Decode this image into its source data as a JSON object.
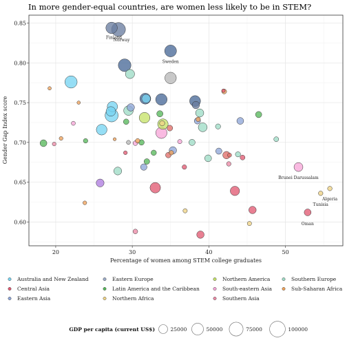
{
  "chart_data": {
    "type": "scatter",
    "title": "In more gender-equal countries, are women less likely to be in STEM?",
    "xlabel": "Percentage of women among STEM college graduates",
    "ylabel": "Gender Gap Index score",
    "xlim": [
      16.5,
      57.5
    ],
    "ylim": [
      0.57,
      0.86
    ],
    "xticks": [
      "20",
      "30",
      "40",
      "50"
    ],
    "yticks": [
      "0.60",
      "0.65",
      "0.70",
      "0.75",
      "0.80",
      "0.85"
    ],
    "grid": true,
    "legend": {
      "region_title": "",
      "regions": [
        {
          "name": "Australia and New Zealand",
          "color": "#79d5f2"
        },
        {
          "name": "Central Asia",
          "color": "#e15b73"
        },
        {
          "name": "Eastern Asia",
          "color": "#8fa7d9"
        },
        {
          "name": "Eastern Europe",
          "color": "#9dadc9"
        },
        {
          "name": "Latin America and the Caribbean",
          "color": "#58b85c"
        },
        {
          "name": "Northern Africa",
          "color": "#f0d487"
        },
        {
          "name": "Northern America",
          "color": "#c6e36a"
        },
        {
          "name": "South-eastern Asia",
          "color": "#f7a6d8"
        },
        {
          "name": "Southern Asia",
          "color": "#ec8aa6"
        },
        {
          "name": "Southern Europe",
          "color": "#9fdcc6"
        },
        {
          "name": "Sub-Saharan Africa",
          "color": "#f0a35c"
        }
      ],
      "size_title": "GDP per capita (current US$)",
      "sizes": [
        {
          "label": "25000",
          "value": 25000
        },
        {
          "label": "50000",
          "value": 50000
        },
        {
          "label": "75000",
          "value": 75000
        },
        {
          "label": "100000",
          "value": 100000
        }
      ],
      "placement": "bottom"
    },
    "extra_colors": {
      "western": "#4a6a98",
      "northern": "#6a7ea0",
      "western_asia": "#e0706a",
      "gray": "#b8b8b8"
    },
    "points": [
      {
        "x": 27.3,
        "y": 0.844,
        "gdp": 47000,
        "color": "#6a7ea0"
      },
      {
        "x": 28.2,
        "y": 0.842,
        "gdp": 75000,
        "color": "#6a7ea0"
      },
      {
        "x": 35.0,
        "y": 0.815,
        "gdp": 51000,
        "color": "#4a6a98"
      },
      {
        "x": 29.0,
        "y": 0.797,
        "gdp": 60000,
        "color": "#4a6a98"
      },
      {
        "x": 29.7,
        "y": 0.786,
        "gdp": 27000,
        "color": "#9fdcc6"
      },
      {
        "x": 22.0,
        "y": 0.776,
        "gdp": 55000,
        "color": "#79d5f2"
      },
      {
        "x": 35.0,
        "y": 0.781,
        "gdp": 47000,
        "color": "#b8b8b8"
      },
      {
        "x": 19.2,
        "y": 0.768,
        "gdp": 900,
        "color": "#f0a35c"
      },
      {
        "x": 41.9,
        "y": 0.765,
        "gdp": 1000,
        "color": "#e15b73"
      },
      {
        "x": 42.0,
        "y": 0.764,
        "gdp": 4000,
        "color": "#f0a35c"
      },
      {
        "x": 31.7,
        "y": 0.755,
        "gdp": 42000,
        "color": "#4a6a98"
      },
      {
        "x": 31.8,
        "y": 0.755,
        "gdp": 23000,
        "color": "#79d5f2"
      },
      {
        "x": 33.8,
        "y": 0.754,
        "gdp": 47000,
        "color": "#4a6a98"
      },
      {
        "x": 38.2,
        "y": 0.752,
        "gdp": 42000,
        "color": "#4a6a98"
      },
      {
        "x": 38.3,
        "y": 0.747,
        "gdp": 15000,
        "color": "#6a7ea0"
      },
      {
        "x": 23.0,
        "y": 0.75,
        "gdp": 800,
        "color": "#f0a35c"
      },
      {
        "x": 27.4,
        "y": 0.745,
        "gdp": 36000,
        "color": "#79d5f2"
      },
      {
        "x": 29.8,
        "y": 0.744,
        "gdp": 15000,
        "color": "#8fa7d9"
      },
      {
        "x": 27.2,
        "y": 0.739,
        "gdp": 30000,
        "color": "#79d5f2"
      },
      {
        "x": 29.5,
        "y": 0.74,
        "gdp": 30000,
        "color": "#9fdcc6"
      },
      {
        "x": 38.8,
        "y": 0.737,
        "gdp": 20000,
        "color": "#9fdcc6"
      },
      {
        "x": 46.5,
        "y": 0.735,
        "gdp": 9000,
        "color": "#58b85c"
      },
      {
        "x": 33.6,
        "y": 0.736,
        "gdp": 9000,
        "color": "#58b85c"
      },
      {
        "x": 27.3,
        "y": 0.734,
        "gdp": 65000,
        "color": "#79d5f2"
      },
      {
        "x": 31.6,
        "y": 0.731,
        "gdp": 40000,
        "color": "#c6e36a"
      },
      {
        "x": 38.5,
        "y": 0.727,
        "gdp": 9000,
        "color": "#8fa7d9"
      },
      {
        "x": 44.1,
        "y": 0.727,
        "gdp": 12000,
        "color": "#8fa7d9"
      },
      {
        "x": 29.2,
        "y": 0.726,
        "gdp": 6000,
        "color": "#58b85c"
      },
      {
        "x": 38.6,
        "y": 0.729,
        "gdp": 3000,
        "color": "#f0a35c"
      },
      {
        "x": 22.3,
        "y": 0.724,
        "gdp": 2000,
        "color": "#f7a6d8"
      },
      {
        "x": 33.9,
        "y": 0.724,
        "gdp": 5000,
        "color": "#f0d487"
      },
      {
        "x": 34.0,
        "y": 0.723,
        "gdp": 38000,
        "color": "#c6e36a"
      },
      {
        "x": 26.0,
        "y": 0.716,
        "gdp": 40000,
        "color": "#79d5f2"
      },
      {
        "x": 39.2,
        "y": 0.719,
        "gdp": 25000,
        "color": "#9fdcc6"
      },
      {
        "x": 41.2,
        "y": 0.72,
        "gdp": 5000,
        "color": "#9fdcc6"
      },
      {
        "x": 34.9,
        "y": 0.718,
        "gdp": 7000,
        "color": "#e0706a"
      },
      {
        "x": 33.8,
        "y": 0.712,
        "gdp": 45000,
        "color": "#f7a6d8"
      },
      {
        "x": 18.4,
        "y": 0.699,
        "gdp": 12000,
        "color": "#58b85c"
      },
      {
        "x": 20.7,
        "y": 0.705,
        "gdp": 1500,
        "color": "#f0a35c"
      },
      {
        "x": 19.8,
        "y": 0.698,
        "gdp": 1500,
        "color": "#ec8aa6"
      },
      {
        "x": 23.9,
        "y": 0.702,
        "gdp": 3000,
        "color": "#58b85c"
      },
      {
        "x": 27.7,
        "y": 0.704,
        "gdp": 500,
        "color": "#f0a35c"
      },
      {
        "x": 29.5,
        "y": 0.7,
        "gdp": 2000,
        "color": "#b8b8b8"
      },
      {
        "x": 30.4,
        "y": 0.699,
        "gdp": 3500,
        "color": "#f7a6d8"
      },
      {
        "x": 30.7,
        "y": 0.702,
        "gdp": 3000,
        "color": "#f0a35c"
      },
      {
        "x": 31.2,
        "y": 0.7,
        "gdp": 6000,
        "color": "#58b85c"
      },
      {
        "x": 36.2,
        "y": 0.701,
        "gdp": 2500,
        "color": "#f7a6d8"
      },
      {
        "x": 37.8,
        "y": 0.7,
        "gdp": 9000,
        "color": "#9fdcc6"
      },
      {
        "x": 48.8,
        "y": 0.704,
        "gdp": 4000,
        "color": "#9fdcc6"
      },
      {
        "x": 29.1,
        "y": 0.687,
        "gdp": 1500,
        "color": "#e15b73"
      },
      {
        "x": 32.8,
        "y": 0.687,
        "gdp": 5500,
        "color": "#58b85c"
      },
      {
        "x": 34.7,
        "y": 0.684,
        "gdp": 6000,
        "color": "#e0706a"
      },
      {
        "x": 35.1,
        "y": 0.687,
        "gdp": 3000,
        "color": "#f0a35c"
      },
      {
        "x": 35.3,
        "y": 0.69,
        "gdp": 15000,
        "color": "#8fa7d9"
      },
      {
        "x": 41.3,
        "y": 0.689,
        "gdp": 9000,
        "color": "#8fa7d9"
      },
      {
        "x": 42.3,
        "y": 0.684,
        "gdp": 15000,
        "color": "#e0706a"
      },
      {
        "x": 43.8,
        "y": 0.685,
        "gdp": 5000,
        "color": "#9fdcc6"
      },
      {
        "x": 44.4,
        "y": 0.681,
        "gdp": 4000,
        "color": "#e15b73"
      },
      {
        "x": 42.7,
        "y": 0.684,
        "gdp": 2000,
        "color": "#e0706a"
      },
      {
        "x": 39.9,
        "y": 0.68,
        "gdp": 12000,
        "color": "#9fdcc6"
      },
      {
        "x": 31.9,
        "y": 0.676,
        "gdp": 6500,
        "color": "#58b85c"
      },
      {
        "x": 42.6,
        "y": 0.673,
        "gdp": 3000,
        "color": "#ec8aa6"
      },
      {
        "x": 31.5,
        "y": 0.669,
        "gdp": 10000,
        "color": "#8fa7d9"
      },
      {
        "x": 36.8,
        "y": 0.669,
        "gdp": 3000,
        "color": "#e15b73"
      },
      {
        "x": 28.1,
        "y": 0.664,
        "gdp": 18000,
        "color": "#9fdcc6"
      },
      {
        "x": 51.7,
        "y": 0.669,
        "gdp": 25000,
        "color": "#f7a6d8"
      },
      {
        "x": 25.8,
        "y": 0.649,
        "gdp": 18000,
        "color": "#b07ee0"
      },
      {
        "x": 33.0,
        "y": 0.643,
        "gdp": 38000,
        "color": "#e15b73"
      },
      {
        "x": 43.4,
        "y": 0.639,
        "gdp": 28000,
        "color": "#e15b73"
      },
      {
        "x": 55.8,
        "y": 0.642,
        "gdp": 3000,
        "color": "#f0d487"
      },
      {
        "x": 54.6,
        "y": 0.636,
        "gdp": 3000,
        "color": "#f0d487"
      },
      {
        "x": 23.8,
        "y": 0.624,
        "gdp": 1500,
        "color": "#f0a35c"
      },
      {
        "x": 45.7,
        "y": 0.615,
        "gdp": 15000,
        "color": "#e15b73"
      },
      {
        "x": 52.9,
        "y": 0.612,
        "gdp": 12000,
        "color": "#e15b73"
      },
      {
        "x": 36.9,
        "y": 0.614,
        "gdp": 2500,
        "color": "#f0d487"
      },
      {
        "x": 45.3,
        "y": 0.598,
        "gdp": 2500,
        "color": "#f0d487"
      },
      {
        "x": 30.4,
        "y": 0.588,
        "gdp": 3500,
        "color": "#ec8aa6"
      },
      {
        "x": 38.9,
        "y": 0.584,
        "gdp": 15000,
        "color": "#e15b73"
      }
    ],
    "annotations": [
      {
        "text": "Finland",
        "x": 27.6,
        "y": 0.83
      },
      {
        "text": "Norway",
        "x": 28.6,
        "y": 0.827
      },
      {
        "text": "Sweden",
        "x": 35.0,
        "y": 0.8
      },
      {
        "text": "Brunei Darussalam",
        "x": 51.7,
        "y": 0.654
      },
      {
        "text": "Algeria",
        "x": 55.8,
        "y": 0.627
      },
      {
        "text": "Tunisia",
        "x": 54.6,
        "y": 0.62
      },
      {
        "text": "Oman",
        "x": 52.9,
        "y": 0.596
      }
    ]
  }
}
